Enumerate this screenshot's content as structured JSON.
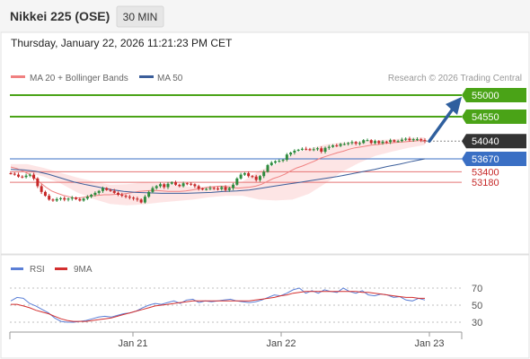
{
  "header": {
    "instrument": "Nikkei 225 (OSE)",
    "interval": "30 MIN",
    "timestamp": "Thursday, January 22, 2026 11:21:23 PM CET"
  },
  "legend": {
    "ma20_label": "MA 20 + Bollinger Bands",
    "ma50_label": "MA 50",
    "credit": "Research © 2026 Trading Central"
  },
  "rsi_legend": {
    "rsi_label": "RSI",
    "ma9_label": "9MA"
  },
  "colors": {
    "candle_up": "#2e8b3e",
    "candle_down": "#c62828",
    "ma20": "#f08080",
    "ma50": "#3b5e9a",
    "bollinger_band": "#fde0e0",
    "resistance_line": "#4aa317",
    "pivot_line": "#3a6fc4",
    "support_line": "#e57373",
    "last_price_tag": "#333333",
    "forecast_arrow": "#2f5f9e",
    "rsi_line": "#5b7fd6",
    "rsi_ma_line": "#d32f2f"
  },
  "chart_data": [
    {
      "type": "candlestick",
      "title": "Nikkei 225 (OSE)",
      "interval": "30 MIN",
      "x_ticks": [
        "Jan 21",
        "Jan 22",
        "Jan 23"
      ],
      "ylim": [
        52450,
        55150
      ],
      "grid": false,
      "indicators": [
        "MA 20 + Bollinger Bands",
        "MA 50"
      ],
      "close": [
        53360,
        53340,
        53300,
        53290,
        53320,
        53340,
        53260,
        53100,
        52980,
        52900,
        52820,
        52800,
        52830,
        52850,
        52820,
        52840,
        52860,
        52830,
        52800,
        52840,
        52880,
        52920,
        52960,
        53000,
        53060,
        53020,
        53000,
        52960,
        52920,
        52900,
        52880,
        52860,
        52840,
        52820,
        52760,
        52880,
        52980,
        53060,
        53100,
        53140,
        53080,
        53150,
        53180,
        53130,
        53100,
        53160,
        53150,
        53140,
        53100,
        53050,
        53030,
        53040,
        53060,
        53050,
        53040,
        53080,
        53020,
        53060,
        53130,
        53260,
        53340,
        53370,
        53310,
        53300,
        53230,
        53310,
        53400,
        53540,
        53590,
        53620,
        53630,
        53650,
        53760,
        53800,
        53840,
        53860,
        53880,
        53870,
        53860,
        53870,
        53890,
        53820,
        53900,
        53920,
        53950,
        53940,
        53980,
        53980,
        54000,
        54020,
        53990,
        54000,
        54060,
        54060,
        54000,
        54040,
        54000,
        54030,
        54020,
        54060,
        54030,
        54040,
        54070,
        54090,
        54060,
        54080,
        54080,
        54060,
        54040
      ],
      "ma20": [
        53500,
        53470,
        53420,
        53360,
        53280,
        53180,
        53080,
        53000,
        52950,
        52910,
        52880,
        52850,
        52860,
        52880,
        52900,
        52910,
        52920,
        52920,
        52930,
        52930,
        52950,
        52970,
        52990,
        53000,
        53010,
        53010,
        53000,
        52990,
        52990,
        52990,
        53000,
        53020,
        53040,
        53060,
        53080,
        53090,
        53100,
        53090,
        53070,
        53060,
        53070,
        53080,
        53100,
        53140,
        53200,
        53260,
        53300,
        53350,
        53420,
        53480,
        53520,
        53570,
        53620,
        53680,
        53720,
        53760,
        53800,
        53830,
        53870,
        53900,
        53920,
        53940,
        53960,
        53970,
        53990,
        54000,
        54010,
        54020,
        54030,
        54040,
        54050,
        54050
      ],
      "ma50": [
        53450,
        53440,
        53410,
        53350,
        53270,
        53190,
        53130,
        53080,
        53030,
        52990,
        52970,
        52960,
        52950,
        52950,
        52950,
        52960,
        52970,
        52990,
        53000,
        53020,
        53060,
        53100,
        53140,
        53180,
        53220,
        53260,
        53300,
        53350,
        53400,
        53450,
        53510,
        53560,
        53620,
        53670
      ],
      "bollinger_upper": [
        53560,
        53560,
        53480,
        53380,
        53280,
        53200,
        53130,
        53140,
        53180,
        53160,
        53130,
        53080,
        53100,
        53120,
        53200,
        53420,
        53560,
        53780,
        53880,
        53970,
        54010,
        54030,
        54060,
        54080,
        54100,
        54120
      ],
      "bollinger_lower": [
        53440,
        53380,
        53300,
        53160,
        52970,
        52830,
        52730,
        52700,
        52720,
        52760,
        52790,
        52820,
        52870,
        52900,
        52900,
        52820,
        52800,
        52820,
        52940,
        53160,
        53400,
        53580,
        53730,
        53820,
        53900,
        53960
      ],
      "levels": [
        {
          "label": "55000",
          "value": 55000,
          "kind": "resistance"
        },
        {
          "label": "54550",
          "value": 54550,
          "kind": "resistance"
        },
        {
          "label": "54040",
          "value": 54040,
          "kind": "last"
        },
        {
          "label": "53670",
          "value": 53670,
          "kind": "pivot"
        },
        {
          "label": "53400",
          "value": 53400,
          "kind": "support"
        },
        {
          "label": "53180",
          "value": 53180,
          "kind": "support"
        }
      ],
      "forecast_target": 55000
    },
    {
      "type": "line",
      "series": [
        {
          "name": "RSI",
          "values": [
            55,
            59,
            58,
            52,
            49,
            45,
            41,
            35,
            31,
            30,
            30,
            31,
            32,
            34,
            36,
            37,
            36,
            38,
            40,
            41,
            43,
            47,
            50,
            52,
            51,
            53,
            55,
            52,
            56,
            57,
            53,
            55,
            54,
            55,
            56,
            57,
            55,
            54,
            53,
            54,
            56,
            59,
            62,
            61,
            64,
            68,
            70,
            64,
            67,
            64,
            68,
            66,
            65,
            70,
            66,
            64,
            67,
            62,
            61,
            63,
            62,
            59,
            60,
            56,
            55,
            58,
            56
          ]
        },
        {
          "name": "9MA",
          "values": [
            51,
            51,
            49,
            47,
            44,
            42,
            40,
            37,
            34,
            32,
            31,
            31,
            31,
            32,
            33,
            34,
            35,
            37,
            39,
            41,
            43,
            45,
            47,
            49,
            50,
            51,
            52,
            53,
            54,
            55,
            55,
            55,
            55,
            55,
            55,
            55,
            55,
            55,
            55,
            56,
            57,
            58,
            59,
            61,
            62,
            64,
            65,
            66,
            66,
            66,
            66,
            66,
            66,
            66,
            66,
            66,
            65,
            65,
            64,
            63,
            62,
            61,
            60,
            59,
            59,
            58,
            58
          ]
        }
      ],
      "yticks": [
        "70",
        "50",
        "30"
      ],
      "ylim": [
        20,
        80
      ]
    }
  ]
}
